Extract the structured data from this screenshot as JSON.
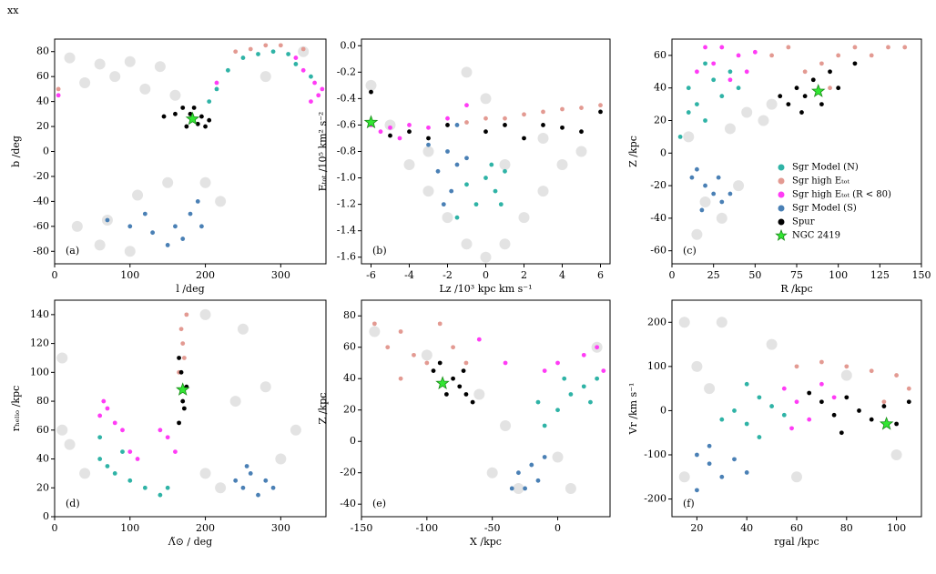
{
  "header": "xx",
  "chart_data": [
    {
      "type": "scatter",
      "panel_label": "(a)",
      "x_label": "l /deg",
      "y_label": "b /deg",
      "xlim": [
        0,
        360
      ],
      "ylim": [
        -90,
        90
      ],
      "xticks": [
        0,
        100,
        200,
        300
      ],
      "yticks": [
        -80,
        -60,
        -40,
        -20,
        0,
        20,
        40,
        60,
        80
      ],
      "series": [
        {
          "color": "#dcdcdc",
          "x": [
            20,
            60,
            100,
            140,
            120,
            80,
            40,
            160,
            30,
            70,
            110,
            150,
            200,
            220,
            60,
            100,
            280,
            330
          ],
          "y": [
            75,
            70,
            72,
            68,
            50,
            60,
            55,
            45,
            -60,
            -55,
            -35,
            -25,
            -25,
            -40,
            -75,
            -80,
            60,
            80
          ]
        },
        {
          "color": "#2fb3a6",
          "x": [
            230,
            250,
            270,
            290,
            310,
            320,
            340,
            215,
            205
          ],
          "y": [
            65,
            75,
            78,
            80,
            78,
            70,
            60,
            50,
            40
          ]
        },
        {
          "color": "#e39a92",
          "x": [
            240,
            280,
            300,
            330,
            260,
            5
          ],
          "y": [
            80,
            85,
            85,
            82,
            82,
            50
          ]
        },
        {
          "color": "#ff3cf5",
          "x": [
            330,
            345,
            350,
            340,
            355,
            5,
            320,
            215
          ],
          "y": [
            65,
            55,
            45,
            40,
            50,
            45,
            75,
            55
          ]
        },
        {
          "color": "#4a80b5",
          "x": [
            100,
            130,
            160,
            180,
            190,
            195,
            150,
            120,
            70,
            170
          ],
          "y": [
            -60,
            -65,
            -60,
            -50,
            -40,
            -60,
            -75,
            -50,
            -55,
            -70
          ]
        },
        {
          "color": "#000000",
          "x": [
            160,
            170,
            180,
            190,
            200,
            195,
            205,
            175,
            185,
            145
          ],
          "y": [
            30,
            35,
            30,
            22,
            20,
            28,
            25,
            20,
            35,
            28
          ]
        },
        {
          "color": "#32e632",
          "marker": "star",
          "x": [
            183
          ],
          "y": [
            26
          ]
        }
      ]
    },
    {
      "type": "scatter",
      "panel_label": "(b)",
      "x_label": "Lz /10³ kpc km s⁻¹",
      "y_label": "Eₜₒₜ /10⁵ km² s⁻²",
      "xlim": [
        -6.5,
        6.5
      ],
      "ylim": [
        -1.65,
        0.05
      ],
      "xticks": [
        -6,
        -4,
        -2,
        0,
        2,
        4,
        6
      ],
      "yticks": [
        {
          "value": 0,
          "label": "0.0"
        },
        -0.2,
        -0.4,
        -0.6,
        -0.8,
        {
          "value": -1,
          "label": "-1.0"
        },
        -1.2,
        -1.4,
        -1.6
      ],
      "series": [
        {
          "color": "#dcdcdc",
          "x": [
            -6,
            -5,
            -4,
            -3,
            -2,
            -1,
            0,
            1,
            2,
            3,
            4,
            5,
            -3,
            1,
            3,
            -1,
            0
          ],
          "y": [
            -0.3,
            -0.6,
            -0.9,
            -1.1,
            -1.3,
            -1.5,
            -1.6,
            -1.5,
            -1.3,
            -1.1,
            -0.9,
            -0.8,
            -0.8,
            -0.9,
            -0.7,
            -0.2,
            -0.4
          ]
        },
        {
          "color": "#2fb3a6",
          "x": [
            0,
            0.5,
            -0.5,
            1,
            -1,
            0.3,
            -1.5,
            0.8
          ],
          "y": [
            -1.0,
            -1.1,
            -1.2,
            -0.95,
            -1.05,
            -0.9,
            -1.3,
            -1.2
          ]
        },
        {
          "color": "#e39a92",
          "x": [
            1,
            2,
            3,
            4,
            5,
            6,
            0,
            -1
          ],
          "y": [
            -0.55,
            -0.52,
            -0.5,
            -0.48,
            -0.47,
            -0.45,
            -0.55,
            -0.58
          ]
        },
        {
          "color": "#ff3cf5",
          "x": [
            -6,
            -5,
            -4,
            -3,
            -5.5,
            -2,
            -4.5,
            -1
          ],
          "y": [
            -0.6,
            -0.62,
            -0.6,
            -0.62,
            -0.65,
            -0.55,
            -0.7,
            -0.45
          ]
        },
        {
          "color": "#4a80b5",
          "x": [
            -2,
            -1.5,
            -2.5,
            -1.8,
            -1,
            -2.2,
            -3,
            -1.5
          ],
          "y": [
            -0.8,
            -0.9,
            -0.95,
            -1.1,
            -0.85,
            -1.2,
            -0.75,
            -0.6
          ]
        },
        {
          "color": "#000000",
          "x": [
            -6,
            -5,
            -3,
            -2,
            0,
            1,
            2,
            3,
            4,
            5,
            -4,
            6
          ],
          "y": [
            -0.35,
            -0.68,
            -0.7,
            -0.6,
            -0.65,
            -0.6,
            -0.7,
            -0.6,
            -0.62,
            -0.65,
            -0.65,
            -0.5
          ]
        },
        {
          "color": "#32e632",
          "marker": "star",
          "x": [
            -6
          ],
          "y": [
            -0.58
          ]
        }
      ]
    },
    {
      "type": "scatter",
      "panel_label": "(c)",
      "x_label": "R /kpc",
      "y_label": "Z /kpc",
      "legend": "lower right",
      "xlim": [
        0,
        150
      ],
      "ylim": [
        -68,
        70
      ],
      "xticks": [
        0,
        25,
        50,
        75,
        100,
        125,
        150
      ],
      "yticks": [
        -60,
        -40,
        -20,
        0,
        20,
        40,
        60
      ],
      "series": [
        {
          "color": "#dcdcdc",
          "x": [
            20,
            30,
            15,
            40,
            35,
            45,
            55,
            60,
            10
          ],
          "y": [
            -30,
            -40,
            -50,
            -20,
            15,
            25,
            20,
            30,
            10
          ]
        },
        {
          "name": "Sgr Model (N)",
          "color": "#2fb3a6",
          "x": [
            10,
            15,
            20,
            25,
            30,
            35,
            10,
            20,
            40,
            5
          ],
          "y": [
            40,
            30,
            20,
            45,
            35,
            50,
            25,
            55,
            40,
            10
          ]
        },
        {
          "name": "Sgr high Eₜₒₜ",
          "color": "#e39a92",
          "x": [
            80,
            90,
            100,
            110,
            120,
            130,
            140,
            95,
            70,
            60
          ],
          "y": [
            50,
            55,
            60,
            65,
            60,
            65,
            65,
            40,
            65,
            60
          ]
        },
        {
          "name": "Sgr high Eₜₒₜ (R < 80)",
          "color": "#ff3cf5",
          "x": [
            20,
            25,
            30,
            40,
            45,
            35,
            50,
            15
          ],
          "y": [
            65,
            55,
            65,
            60,
            50,
            45,
            62,
            50
          ]
        },
        {
          "name": "Sgr Model (S)",
          "color": "#4a80b5",
          "x": [
            15,
            20,
            25,
            30,
            18,
            12,
            28,
            35
          ],
          "y": [
            -10,
            -20,
            -25,
            -30,
            -35,
            -15,
            -15,
            -25
          ]
        },
        {
          "name": "Spur",
          "color": "#000000",
          "x": [
            65,
            70,
            75,
            80,
            85,
            90,
            95,
            100,
            110,
            78
          ],
          "y": [
            35,
            30,
            40,
            35,
            45,
            30,
            50,
            40,
            55,
            25
          ]
        },
        {
          "name": "NGC 2419",
          "color": "#32e632",
          "marker": "star",
          "x": [
            88
          ],
          "y": [
            38
          ]
        }
      ]
    },
    {
      "type": "scatter",
      "panel_label": "(d)",
      "x_label": "Λ̃⊙ / deg",
      "y_label": "rₕₑₗᵢₒ /kpc",
      "xlim": [
        0,
        360
      ],
      "ylim": [
        0,
        150
      ],
      "xticks": [
        0,
        100,
        200,
        300
      ],
      "yticks": [
        0,
        20,
        40,
        60,
        80,
        100,
        120,
        140
      ],
      "series": [
        {
          "color": "#dcdcdc",
          "x": [
            10,
            20,
            40,
            200,
            220,
            300,
            320,
            280,
            240,
            10,
            200,
            250
          ],
          "y": [
            60,
            50,
            30,
            30,
            20,
            40,
            60,
            90,
            80,
            110,
            140,
            130
          ]
        },
        {
          "color": "#2fb3a6",
          "x": [
            60,
            70,
            80,
            100,
            120,
            140,
            60,
            90,
            150
          ],
          "y": [
            40,
            35,
            30,
            25,
            20,
            15,
            55,
            45,
            20
          ]
        },
        {
          "color": "#e39a92",
          "x": [
            165,
            170,
            175,
            168,
            172
          ],
          "y": [
            100,
            120,
            140,
            130,
            110
          ]
        },
        {
          "color": "#ff3cf5",
          "x": [
            60,
            70,
            80,
            90,
            65,
            100,
            110,
            140,
            150,
            160
          ],
          "y": [
            70,
            75,
            65,
            60,
            80,
            45,
            40,
            60,
            55,
            45
          ]
        },
        {
          "color": "#4a80b5",
          "x": [
            240,
            250,
            260,
            270,
            280,
            255,
            290
          ],
          "y": [
            25,
            20,
            30,
            15,
            25,
            35,
            20
          ]
        },
        {
          "color": "#000000",
          "x": [
            165,
            170,
            175,
            168,
            172,
            165
          ],
          "y": [
            65,
            80,
            90,
            100,
            75,
            110
          ]
        },
        {
          "color": "#32e632",
          "marker": "star",
          "x": [
            170
          ],
          "y": [
            88
          ]
        }
      ]
    },
    {
      "type": "scatter",
      "panel_label": "(e)",
      "x_label": "X /kpc",
      "y_label": "Z /kpc",
      "xlim": [
        -150,
        40
      ],
      "ylim": [
        -48,
        90
      ],
      "xticks": [
        -150,
        -100,
        -50,
        0
      ],
      "yticks": [
        -40,
        -20,
        0,
        20,
        40,
        60,
        80
      ],
      "series": [
        {
          "color": "#dcdcdc",
          "x": [
            -140,
            -100,
            -60,
            -40,
            -30,
            0,
            10,
            -50,
            30
          ],
          "y": [
            70,
            55,
            30,
            10,
            -30,
            -10,
            -30,
            -20,
            60
          ]
        },
        {
          "color": "#2fb3a6",
          "x": [
            0,
            10,
            20,
            30,
            -10,
            5,
            25,
            -15
          ],
          "y": [
            20,
            30,
            35,
            40,
            10,
            40,
            25,
            25
          ]
        },
        {
          "color": "#e39a92",
          "x": [
            -140,
            -130,
            -120,
            -110,
            -100,
            -80,
            -90,
            -70,
            -120
          ],
          "y": [
            75,
            60,
            70,
            55,
            50,
            60,
            75,
            50,
            40
          ]
        },
        {
          "color": "#ff3cf5",
          "x": [
            -60,
            -40,
            20,
            30,
            35,
            0,
            -10
          ],
          "y": [
            65,
            50,
            55,
            60,
            45,
            50,
            45
          ]
        },
        {
          "color": "#4a80b5",
          "x": [
            -30,
            -20,
            -15,
            -25,
            -10,
            -35
          ],
          "y": [
            -20,
            -15,
            -25,
            -30,
            -10,
            -30
          ]
        },
        {
          "color": "#000000",
          "x": [
            -90,
            -80,
            -75,
            -70,
            -65,
            -85,
            -95,
            -72
          ],
          "y": [
            50,
            40,
            35,
            30,
            25,
            30,
            45,
            45
          ]
        },
        {
          "color": "#32e632",
          "marker": "star",
          "x": [
            -88
          ],
          "y": [
            37
          ]
        }
      ]
    },
    {
      "type": "scatter",
      "panel_label": "(f)",
      "x_label": "rgal /kpc",
      "y_label": "Vr /km s⁻¹",
      "xlim": [
        10,
        110
      ],
      "ylim": [
        -240,
        250
      ],
      "xticks": [
        20,
        40,
        60,
        80,
        100
      ],
      "yticks": [
        -200,
        -100,
        0,
        100,
        200
      ],
      "series": [
        {
          "color": "#dcdcdc",
          "x": [
            15,
            20,
            25,
            15,
            50,
            60,
            80,
            100,
            30
          ],
          "y": [
            200,
            100,
            50,
            -150,
            150,
            -150,
            80,
            -100,
            200
          ]
        },
        {
          "color": "#2fb3a6",
          "x": [
            35,
            40,
            45,
            50,
            30,
            55,
            40,
            45
          ],
          "y": [
            0,
            -30,
            30,
            10,
            -20,
            -10,
            60,
            -60
          ]
        },
        {
          "color": "#e39a92",
          "x": [
            60,
            70,
            80,
            90,
            100,
            105,
            95
          ],
          "y": [
            100,
            110,
            100,
            90,
            80,
            50,
            20
          ]
        },
        {
          "color": "#ff3cf5",
          "x": [
            55,
            60,
            65,
            70,
            58,
            75
          ],
          "y": [
            50,
            20,
            -20,
            60,
            -40,
            30
          ]
        },
        {
          "color": "#4a80b5",
          "x": [
            20,
            25,
            30,
            35,
            25,
            40,
            20
          ],
          "y": [
            -100,
            -120,
            -150,
            -110,
            -80,
            -140,
            -180
          ]
        },
        {
          "color": "#000000",
          "x": [
            65,
            70,
            75,
            80,
            85,
            90,
            95,
            100,
            105,
            78
          ],
          "y": [
            40,
            20,
            -10,
            30,
            0,
            -20,
            10,
            -30,
            20,
            -50
          ]
        },
        {
          "color": "#32e632",
          "marker": "star",
          "x": [
            96
          ],
          "y": [
            -30
          ]
        }
      ]
    }
  ]
}
